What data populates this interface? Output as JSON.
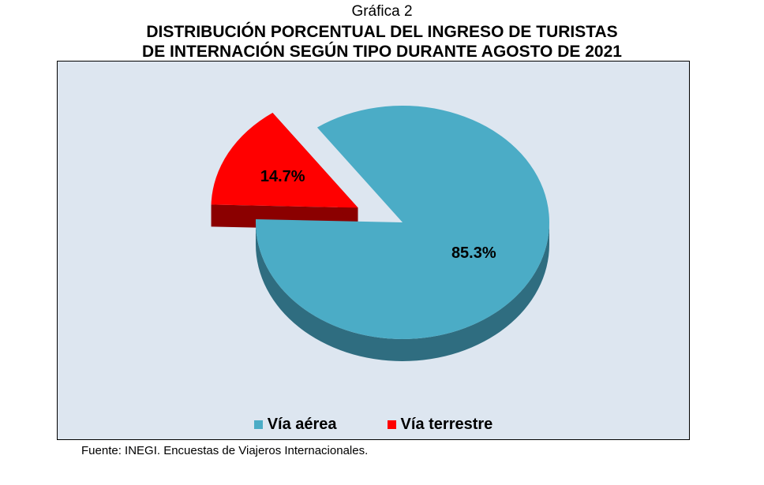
{
  "caption": "Gráfica 2",
  "title_lines": [
    "DISTRIBUCIÓN PORCENTUAL DEL INGRESO DE TURISTAS",
    "DE INTERNACIÓN SEGÚN TIPO DURANTE AGOSTO DE 2021"
  ],
  "source": "Fuente: INEGI. Encuestas de Viajeros Internacionales.",
  "chart_data": {
    "type": "pie",
    "style": "3d-exploded",
    "legend_position": "bottom",
    "slices": [
      {
        "name": "Vía aérea",
        "value": 85.3,
        "label": "85.3%",
        "color": "#4bacc6",
        "side_color": "#2f6d80"
      },
      {
        "name": "Vía terrestre",
        "value": 14.7,
        "label": "14.7%",
        "color": "#ff0000",
        "side_color": "#8b0000",
        "exploded": true
      }
    ]
  }
}
